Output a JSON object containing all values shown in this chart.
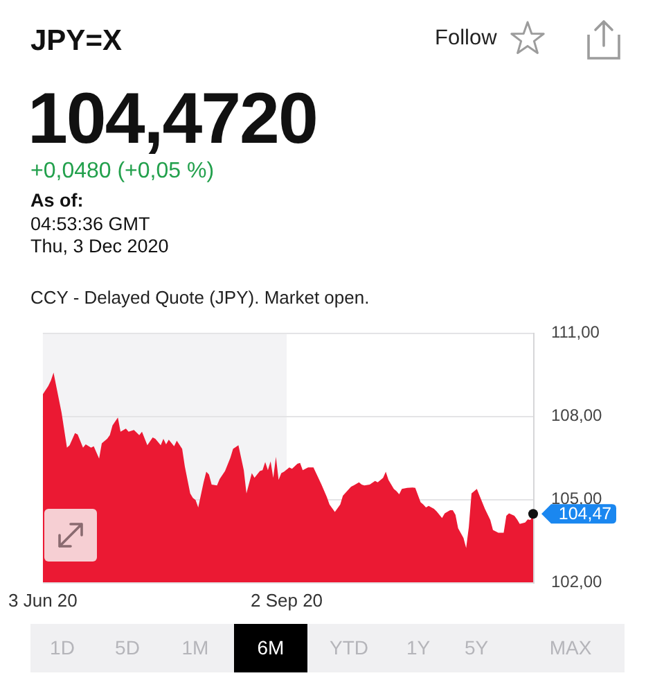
{
  "chart_data": {
    "type": "area",
    "title": "JPY=X",
    "subtitle": "104,4720",
    "annotations": [
      "+0,0480 (+0,05 %)",
      "As of:",
      "04:53:36 GMT",
      "Thu, 3 Dec 2020",
      "CCY - Delayed Quote (JPY). Market open.",
      "Follow",
      "1D",
      "5D",
      "1M",
      "6M",
      "YTD",
      "1Y",
      "5Y",
      "MAX",
      {
        "text": "104,47",
        "x": "2020-12-03",
        "y": 104.47
      }
    ],
    "x": [
      "2020-06-03",
      "2020-06-05",
      "2020-06-06",
      "2020-06-07",
      "2020-06-08",
      "2020-06-10",
      "2020-06-12",
      "2020-06-13",
      "2020-06-15",
      "2020-06-16",
      "2020-06-18",
      "2020-06-19",
      "2020-06-21",
      "2020-06-22",
      "2020-06-24",
      "2020-06-25",
      "2020-06-27",
      "2020-06-28",
      "2020-06-29",
      "2020-07-01",
      "2020-07-02",
      "2020-07-04",
      "2020-07-05",
      "2020-07-07",
      "2020-07-09",
      "2020-07-10",
      "2020-07-12",
      "2020-07-14",
      "2020-07-15",
      "2020-07-17",
      "2020-07-18",
      "2020-07-19",
      "2020-07-20",
      "2020-07-22",
      "2020-07-23",
      "2020-07-25",
      "2020-07-26",
      "2020-07-28",
      "2020-07-29",
      "2020-07-30",
      "2020-07-31",
      "2020-08-02",
      "2020-08-03",
      "2020-08-04",
      "2020-08-05",
      "2020-08-07",
      "2020-08-08",
      "2020-08-10",
      "2020-08-12",
      "2020-08-13",
      "2020-08-15",
      "2020-08-16",
      "2020-08-17",
      "2020-08-18",
      "2020-08-20",
      "2020-08-21",
      "2020-08-23",
      "2020-08-24",
      "2020-08-25",
      "2020-08-26",
      "2020-08-27",
      "2020-08-28",
      "2020-08-29",
      "2020-08-30",
      "2020-08-31",
      "2020-09-01",
      "2020-09-03",
      "2020-09-04",
      "2020-09-06",
      "2020-09-07",
      "2020-09-08",
      "2020-09-10",
      "2020-09-12",
      "2020-09-13",
      "2020-09-15",
      "2020-09-17",
      "2020-09-18",
      "2020-09-20",
      "2020-09-22",
      "2020-09-23",
      "2020-09-26",
      "2020-09-27",
      "2020-09-29",
      "2020-09-30",
      "2020-10-01",
      "2020-10-03",
      "2020-10-05",
      "2020-10-06",
      "2020-10-08",
      "2020-10-09",
      "2020-10-10",
      "2020-10-12",
      "2020-10-13",
      "2020-10-14",
      "2020-10-15",
      "2020-10-17",
      "2020-10-19",
      "2020-10-20",
      "2020-10-22",
      "2020-10-23",
      "2020-10-24",
      "2020-10-25",
      "2020-10-27",
      "2020-10-28",
      "2020-10-30",
      "2020-10-31",
      "2020-11-02",
      "2020-11-03",
      "2020-11-04",
      "2020-11-05",
      "2020-11-07",
      "2020-11-08",
      "2020-11-09",
      "2020-11-10",
      "2020-11-11",
      "2020-11-12",
      "2020-11-13",
      "2020-11-15",
      "2020-11-17",
      "2020-11-18",
      "2020-11-20",
      "2020-11-22",
      "2020-11-23",
      "2020-11-24",
      "2020-11-26",
      "2020-11-27",
      "2020-11-28",
      "2020-11-30",
      "2020-12-01",
      "2020-12-02",
      "2020-12-03"
    ],
    "values": [
      108.79,
      109.08,
      109.28,
      109.57,
      109.08,
      108.12,
      106.86,
      106.95,
      107.39,
      107.34,
      106.86,
      106.98,
      106.86,
      106.91,
      106.47,
      107.02,
      107.18,
      107.31,
      107.66,
      107.95,
      107.44,
      107.55,
      107.44,
      107.5,
      107.31,
      107.44,
      106.95,
      107.23,
      107.18,
      106.95,
      107.18,
      106.98,
      107.15,
      106.91,
      107.11,
      106.82,
      106.18,
      105.21,
      105.05,
      104.97,
      104.7,
      105.61,
      105.99,
      105.89,
      105.53,
      105.5,
      105.73,
      106.02,
      106.5,
      106.82,
      106.95,
      106.5,
      106.05,
      105.21,
      105.94,
      105.77,
      106.02,
      106.05,
      106.34,
      106.05,
      106.37,
      105.77,
      106.53,
      105.7,
      105.94,
      105.99,
      106.15,
      106.1,
      106.28,
      106.31,
      106.05,
      106.15,
      106.15,
      105.94,
      105.53,
      105.08,
      104.81,
      104.54,
      104.81,
      105.13,
      105.45,
      105.5,
      105.61,
      105.53,
      105.5,
      105.53,
      105.66,
      105.61,
      105.77,
      105.99,
      105.7,
      105.37,
      105.29,
      105.18,
      105.37,
      105.41,
      105.42,
      105.41,
      104.89,
      104.81,
      104.7,
      104.76,
      104.65,
      104.56,
      104.32,
      104.49,
      104.6,
      104.6,
      104.44,
      103.95,
      103.6,
      103.24,
      104.0,
      105.21,
      105.29,
      105.37,
      105.13,
      104.65,
      104.25,
      103.89,
      103.79,
      103.79,
      104.4,
      104.49,
      104.4,
      104.27,
      104.11,
      104.16,
      104.27,
      104.25,
      104.47
    ],
    "color": "#eb1933",
    "xlim": [
      "2020-06-03",
      "2020-12-03"
    ],
    "xticks": [
      {
        "value": "2020-06-03",
        "label": "3 Jun 20"
      },
      {
        "value": "2020-09-02",
        "label": "2 Sep 20"
      }
    ],
    "ylim": [
      102,
      111
    ],
    "yticks": [
      {
        "value": 102,
        "label": "102,00"
      },
      {
        "value": 105,
        "label": "105,00"
      },
      {
        "value": 108,
        "label": "108,00"
      },
      {
        "value": 111,
        "label": "111,00"
      }
    ],
    "bands": [
      {
        "axis": "x",
        "from": "2020-06-03",
        "to": "2020-09-02",
        "color": "#f3f3f5"
      }
    ],
    "grid": "y"
  }
}
